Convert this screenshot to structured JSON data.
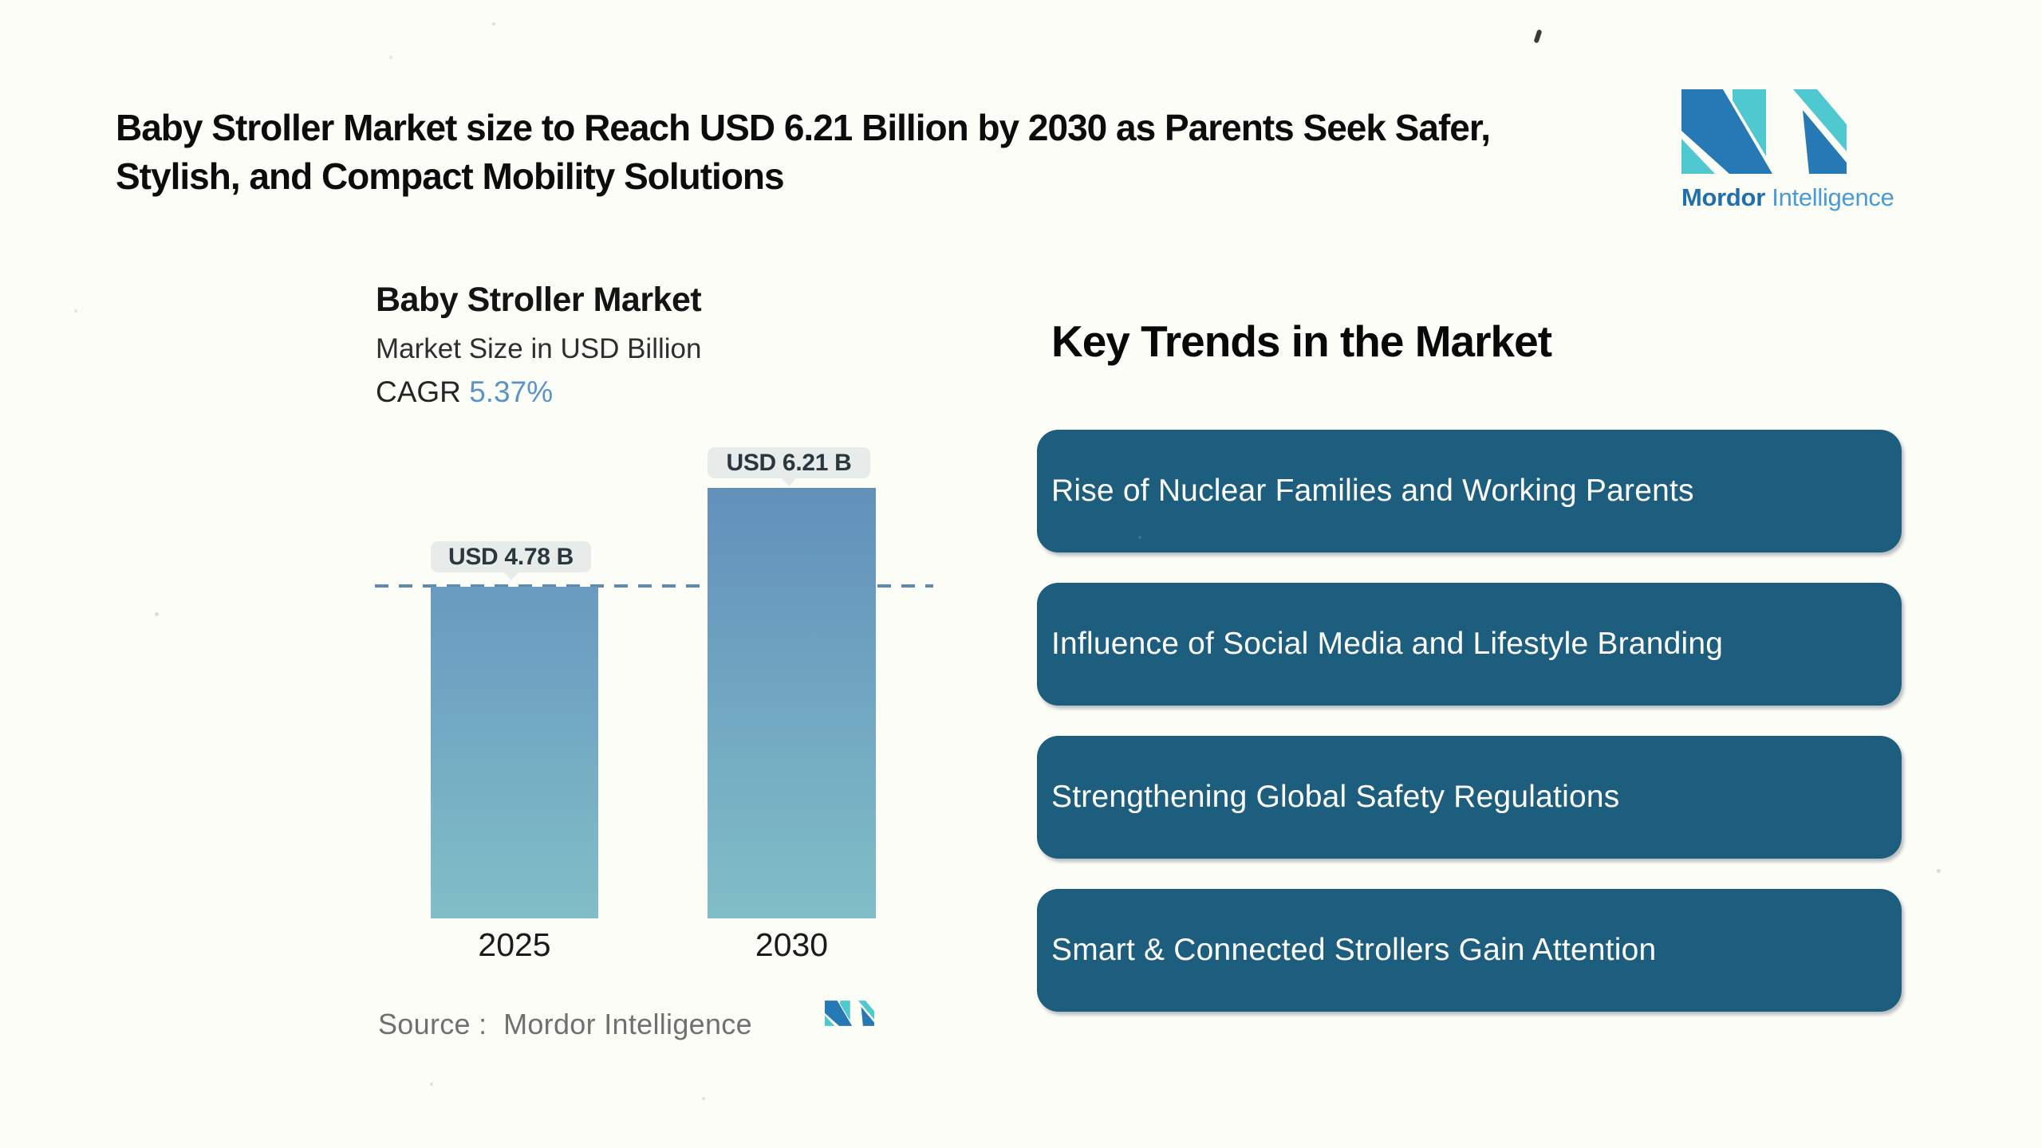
{
  "page": {
    "background": "#fdfdf8"
  },
  "header": {
    "title_line1": "Baby Stroller Market size to Reach USD 6.21 Billion by 2030 as Parents Seek Safer,",
    "title_line2": "Stylish, and Compact Mobility Solutions"
  },
  "brand": {
    "name_bold": "Mordor",
    "name_regular": "Intelligence",
    "blue": "#2779b5",
    "teal": "#4fc9cf"
  },
  "chart_data": {
    "type": "bar",
    "title": "Baby Stroller Market",
    "subtitle": "Market Size in USD Billion",
    "cagr_label": "CAGR",
    "cagr_value": "5.37%",
    "unit": "USD Billion",
    "categories": [
      "2025",
      "2030"
    ],
    "values": [
      4.78,
      6.21
    ],
    "bar_labels": [
      "USD 4.78 B",
      "USD 6.21 B"
    ],
    "baseline_value": 4.78,
    "ylim": [
      0,
      6.5
    ],
    "grid": "off",
    "legend": "none",
    "source": "Source :  Mordor Intelligence",
    "bar_gradient_top_2030": "#6290bb",
    "bar_gradient_top_2025": "#699ac0",
    "bar_gradient_bottom": "#80bec7",
    "dash_color": "#5e89b0",
    "label_pill_bg": "#e7ecea"
  },
  "trends": {
    "heading": "Key Trends in the Market",
    "box_color": "#1d5e7e",
    "text_color": "#ffffff",
    "items": [
      {
        "label": "Rise of Nuclear Families and Working Parents"
      },
      {
        "label": "Influence of Social Media and Lifestyle Branding"
      },
      {
        "label": "Strengthening Global Safety Regulations"
      },
      {
        "label": "Smart & Connected Strollers Gain Attention"
      }
    ]
  }
}
